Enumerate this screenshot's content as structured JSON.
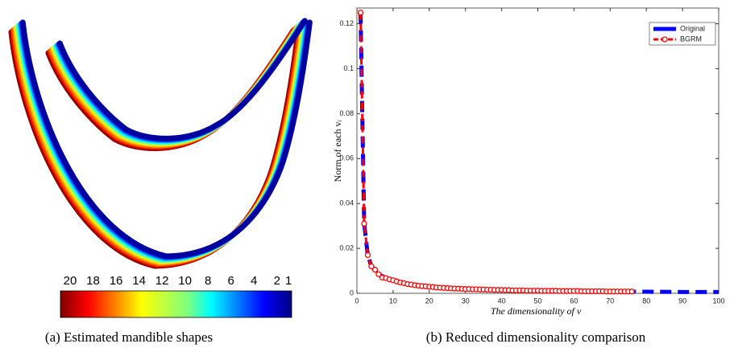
{
  "left_panel": {
    "colorbar": {
      "ticks": [
        20,
        18,
        16,
        14,
        12,
        10,
        8,
        6,
        4,
        2,
        1
      ]
    },
    "caption": "(a)  Estimated mandible shapes"
  },
  "chart_data": {
    "type": "line",
    "caption": "(b)  Reduced dimensionality comparison",
    "xlabel": "The dimensionality of v",
    "ylabel": "Norm of each vᵢ",
    "xlim": [
      0,
      100
    ],
    "ylim": [
      0,
      0.127
    ],
    "xticks": [
      0,
      10,
      20,
      30,
      40,
      50,
      60,
      70,
      80,
      90,
      100
    ],
    "yticks": [
      0,
      0.02,
      0.04,
      0.06,
      0.08,
      0.1,
      0.12
    ],
    "legend": "upper right",
    "series": [
      {
        "name": "Original",
        "color": "#0000ff",
        "x": [
          1,
          2,
          3,
          4,
          5,
          6,
          8,
          10,
          15,
          20,
          30,
          40,
          50,
          60,
          70,
          80,
          90,
          100
        ],
        "values": [
          0.125,
          0.031,
          0.017,
          0.012,
          0.0105,
          0.0085,
          0.0068,
          0.0058,
          0.0039,
          0.0029,
          0.0019,
          0.0015,
          0.0012,
          0.001,
          0.0008,
          0.0007,
          0.0006,
          0.0006
        ]
      },
      {
        "name": "BGRM",
        "color": "#ff0000",
        "x": [
          1,
          2,
          3,
          4,
          5,
          6,
          7,
          8,
          9,
          10,
          11,
          12,
          13,
          14,
          15,
          16,
          17,
          18,
          19,
          20,
          21,
          22,
          23,
          24,
          25,
          26,
          27,
          28,
          29,
          30,
          31,
          32,
          33,
          34,
          35,
          36,
          37,
          38,
          39,
          40,
          41,
          42,
          43,
          44,
          45,
          46,
          47,
          48,
          49,
          50,
          51,
          52,
          53,
          54,
          55,
          56,
          57,
          58,
          59,
          60,
          61,
          62,
          63,
          64,
          65,
          66,
          67,
          68,
          69,
          70,
          71,
          72,
          73,
          74,
          75,
          76
        ],
        "values": [
          0.125,
          0.031,
          0.017,
          0.012,
          0.0105,
          0.0085,
          0.007,
          0.0068,
          0.0062,
          0.0058,
          0.0053,
          0.0048,
          0.0045,
          0.0041,
          0.0039,
          0.0036,
          0.0034,
          0.0032,
          0.0031,
          0.0029,
          0.0028,
          0.0026,
          0.0025,
          0.0024,
          0.0023,
          0.0022,
          0.0021,
          0.0021,
          0.002,
          0.0019,
          0.0019,
          0.0018,
          0.0018,
          0.0017,
          0.0017,
          0.0016,
          0.0016,
          0.0015,
          0.0015,
          0.0015,
          0.0014,
          0.0014,
          0.0013,
          0.0013,
          0.0013,
          0.0013,
          0.0012,
          0.0012,
          0.0012,
          0.0012,
          0.0011,
          0.0011,
          0.0011,
          0.0011,
          0.0011,
          0.001,
          0.001,
          0.001,
          0.001,
          0.001,
          0.001,
          0.0009,
          0.0009,
          0.0009,
          0.0009,
          0.0009,
          0.0009,
          0.0009,
          0.0008,
          0.0008,
          0.0008,
          0.0008,
          0.0008,
          0.0008,
          0.0008,
          0.0008
        ]
      }
    ]
  }
}
